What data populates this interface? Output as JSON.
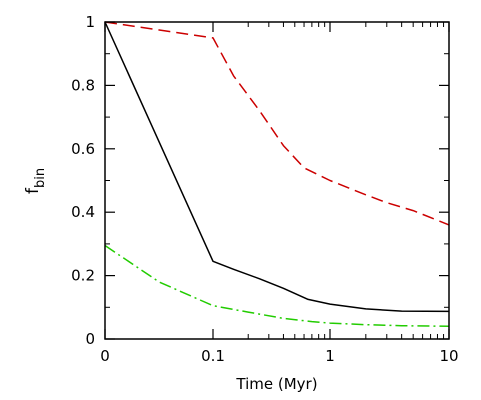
{
  "chart_data": {
    "type": "line",
    "xlabel": "Time (Myr)",
    "ylabel": "f",
    "ylabel_subscript": "bin",
    "x_scale": "log, with 0 on the left edge",
    "x_tick_labels": [
      "0",
      "0.1",
      "1",
      "10"
    ],
    "y_tick_labels": [
      "0",
      "0.2",
      "0.4",
      "0.6",
      "0.8",
      "1"
    ],
    "xlim": [
      0,
      10
    ],
    "ylim": [
      0,
      1
    ],
    "grid": false,
    "series": [
      {
        "color": "#000000",
        "line_style": "solid",
        "x": [
          0,
          0.1,
          0.15,
          0.25,
          0.4,
          0.65,
          1,
          2,
          4,
          10
        ],
        "y": [
          1.0,
          0.245,
          0.22,
          0.19,
          0.16,
          0.125,
          0.11,
          0.095,
          0.088,
          0.087
        ]
      },
      {
        "color": "#cc0000",
        "line_style": "dashed",
        "x": [
          0,
          0.1,
          0.15,
          0.25,
          0.4,
          0.6,
          1,
          2,
          3,
          5,
          10
        ],
        "y": [
          1.0,
          0.95,
          0.83,
          0.72,
          0.61,
          0.54,
          0.5,
          0.455,
          0.43,
          0.405,
          0.36
        ]
      },
      {
        "color": "#22cc00",
        "line_style": "dash-dot",
        "x": [
          0,
          0.05,
          0.1,
          0.2,
          0.4,
          0.7,
          1,
          2,
          4,
          10
        ],
        "y": [
          0.295,
          0.18,
          0.105,
          0.085,
          0.065,
          0.055,
          0.05,
          0.045,
          0.042,
          0.04
        ]
      }
    ]
  }
}
